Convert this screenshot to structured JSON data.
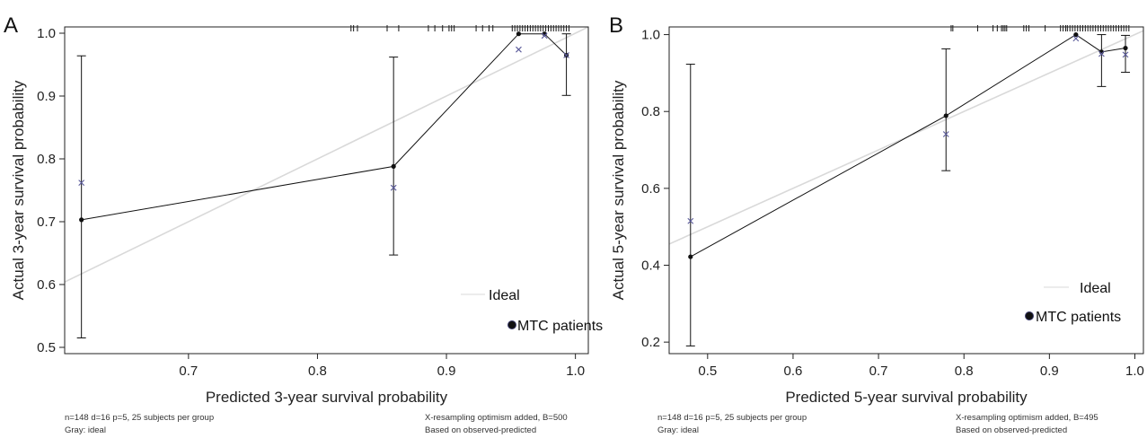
{
  "colors": {
    "ideal": "#d9d9d9",
    "apparent": "#111111",
    "corrected": "#5a5a9a",
    "axis": "#222222"
  },
  "chart_data": [
    {
      "type": "scatter",
      "panel_label": "A",
      "title": "",
      "xlabel": "Predicted 3-year survival probability",
      "ylabel": "Actual 3-year survival probability",
      "xlim": [
        0.604,
        1.01
      ],
      "ylim": [
        0.49,
        1.01
      ],
      "xticks": [
        0.7,
        0.8,
        0.9,
        1.0
      ],
      "xtick_labels": [
        "0.7",
        "0.8",
        "0.9",
        "1.0"
      ],
      "yticks": [
        0.5,
        0.6,
        0.7,
        0.8,
        0.9,
        1.0
      ],
      "ytick_labels": [
        "0.5",
        "0.6",
        "0.7",
        "0.8",
        "0.9",
        "1.0"
      ],
      "grid": false,
      "legend": {
        "position": "bottom-right",
        "entries": [
          "Ideal",
          "MTC patients"
        ]
      },
      "ideal_line": [
        [
          0.604,
          0.604
        ],
        [
          1.01,
          1.01
        ]
      ],
      "series": [
        {
          "name": "MTC patients",
          "x": [
            0.617,
            0.859,
            0.956,
            0.976,
            0.993
          ],
          "y": [
            0.703,
            0.788,
            0.999,
            0.999,
            0.965
          ],
          "ci_lower": [
            0.515,
            0.647,
            null,
            null,
            0.901
          ],
          "ci_upper": [
            0.964,
            0.962,
            null,
            null,
            0.999
          ]
        },
        {
          "x": [
            0.617,
            0.859,
            0.956,
            0.976,
            0.993
          ],
          "y": [
            0.762,
            0.754,
            0.974,
            0.996,
            0.965
          ]
        }
      ],
      "rug_x": [
        0.826,
        0.828,
        0.831,
        0.854,
        0.863,
        0.886,
        0.891,
        0.897,
        0.902,
        0.904,
        0.906,
        0.923,
        0.928,
        0.933,
        0.936,
        0.951,
        0.953,
        0.955,
        0.957,
        0.959,
        0.961,
        0.963,
        0.965,
        0.967,
        0.969,
        0.971,
        0.973,
        0.975,
        0.977,
        0.979,
        0.981,
        0.983,
        0.985,
        0.987,
        0.989,
        0.991,
        0.993,
        0.995
      ],
      "footnotes": {
        "left": [
          "n=148 d=16 p=5, 25 subjects per group",
          "Gray: ideal"
        ],
        "right": [
          "X-resampling optimism added, B=500",
          "Based on observed-predicted"
        ]
      }
    },
    {
      "type": "scatter",
      "panel_label": "B",
      "title": "",
      "xlabel": "Predicted 5-year survival probability",
      "ylabel": "Actual 5-year survival probability",
      "xlim": [
        0.455,
        1.01
      ],
      "ylim": [
        0.17,
        1.02
      ],
      "xticks": [
        0.5,
        0.6,
        0.7,
        0.8,
        0.9,
        1.0
      ],
      "xtick_labels": [
        "0.5",
        "0.6",
        "0.7",
        "0.8",
        "0.9",
        "1.0"
      ],
      "yticks": [
        0.2,
        0.4,
        0.6,
        0.8,
        1.0
      ],
      "ytick_labels": [
        "0.2",
        "0.4",
        "0.6",
        "0.8",
        "1.0"
      ],
      "grid": false,
      "legend": {
        "position": "bottom-right",
        "entries": [
          "Ideal",
          "MTC patients"
        ]
      },
      "ideal_line": [
        [
          0.455,
          0.455
        ],
        [
          1.01,
          1.01
        ]
      ],
      "series": [
        {
          "name": "MTC patients",
          "x": [
            0.48,
            0.779,
            0.931,
            0.961,
            0.989
          ],
          "y": [
            0.422,
            0.789,
            1.0,
            0.955,
            0.965
          ],
          "ci_lower": [
            0.19,
            0.646,
            null,
            0.865,
            0.902
          ],
          "ci_upper": [
            0.923,
            0.963,
            null,
            1.0,
            0.998
          ]
        },
        {
          "x": [
            0.48,
            0.779,
            0.931,
            0.961,
            0.989
          ],
          "y": [
            0.515,
            0.741,
            0.99,
            0.95,
            0.948
          ]
        }
      ],
      "rug_x": [
        0.785,
        0.787,
        0.816,
        0.834,
        0.839,
        0.844,
        0.846,
        0.848,
        0.85,
        0.87,
        0.873,
        0.876,
        0.895,
        0.913,
        0.916,
        0.919,
        0.921,
        0.924,
        0.927,
        0.93,
        0.933,
        0.936,
        0.939,
        0.942,
        0.945,
        0.948,
        0.951,
        0.954,
        0.957,
        0.96,
        0.963,
        0.966,
        0.969,
        0.972,
        0.975,
        0.978,
        0.981,
        0.984,
        0.987,
        0.99,
        0.993
      ],
      "footnotes": {
        "left": [
          "n=148 d=16 p=5, 25 subjects per group",
          "Gray: ideal"
        ],
        "right": [
          "X-resampling optimism added, B=495",
          "Based on observed-predicted"
        ]
      }
    }
  ]
}
